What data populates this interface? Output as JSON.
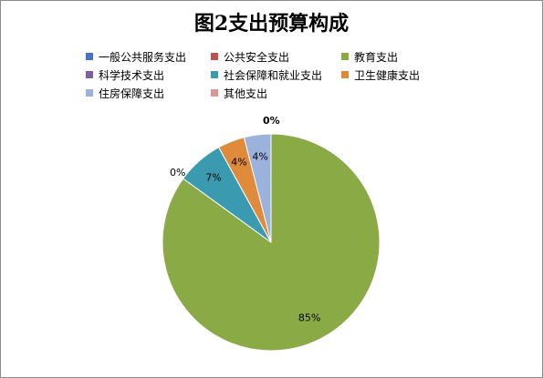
{
  "chart_data": {
    "type": "pie",
    "title": "图2支出预算构成",
    "legend_position": "top",
    "series": [
      {
        "name": "一般公共服务支出",
        "value": 0,
        "label": "",
        "color": "#4472c4"
      },
      {
        "name": "公共安全支出",
        "value": 0,
        "label": "",
        "color": "#c0504d"
      },
      {
        "name": "教育支出",
        "value": 85,
        "label": "85%",
        "color": "#8aaa45"
      },
      {
        "name": "科学技术支出",
        "value": 0,
        "label": "",
        "color": "#7f5fa3"
      },
      {
        "name": "社会保障和就业支出",
        "value": 7,
        "label": "7%",
        "color": "#3a9bb0"
      },
      {
        "name": "卫生健康支出",
        "value": 4,
        "label": "4%",
        "color": "#e08a3c"
      },
      {
        "name": "住房保障支出",
        "value": 4,
        "label": "4%",
        "color": "#9bb3dc"
      },
      {
        "name": "其他支出",
        "value": 0,
        "label": "",
        "color": "#d99694"
      }
    ],
    "extra_labels": [
      "0%",
      "0%"
    ]
  }
}
